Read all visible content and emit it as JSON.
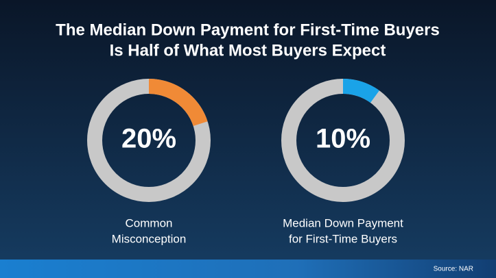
{
  "title_lines": [
    "The Median Down Payment for First-Time Buyers",
    "Is Half of What Most Buyers Expect"
  ],
  "source": "Source: NAR",
  "chart_data": [
    {
      "type": "donut",
      "values": [
        20
      ],
      "value_labels": [
        "20%"
      ],
      "label_lines": [
        "Common",
        "Misconception"
      ],
      "color": "#f08a36",
      "ylim": [
        0,
        100
      ]
    },
    {
      "type": "donut",
      "values": [
        10
      ],
      "value_labels": [
        "10%"
      ],
      "label_lines": [
        "Median Down Payment",
        "for First-Time Buyers"
      ],
      "color": "#1aa3e8",
      "ylim": [
        0,
        100
      ]
    }
  ]
}
